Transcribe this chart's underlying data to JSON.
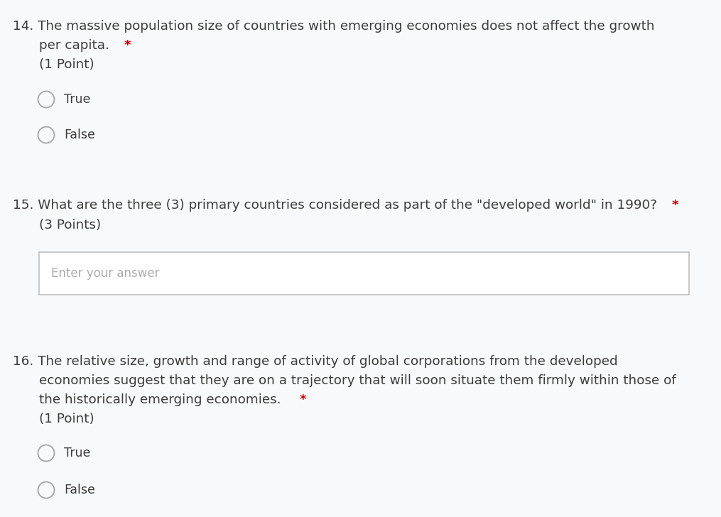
{
  "bg_color": "#f8f9fa",
  "text_color": "#3c3c3c",
  "points_color": "#3c3c3c",
  "red_color": "#cc0000",
  "border_color": "#c0c0c0",
  "radio_color": "#aaaaaa",
  "placeholder_color": "#aaaaaa",
  "q14_line1": "14. The massive population size of countries with emerging economies does not affect the growth",
  "q14_line2_main": "per capita. ",
  "q14_line2_star": "*",
  "q14_points": "(1 Point)",
  "q14_options": [
    "True",
    "False"
  ],
  "q15_line1_main": "15. What are the three (3) primary countries considered as part of the \"developed world\" in 1990? ",
  "q15_line1_star": "*",
  "q15_points": "(3 Points)",
  "q15_placeholder": "Enter your answer",
  "q16_line1": "16. The relative size, growth and range of activity of global corporations from the developed",
  "q16_line2": "economies suggest that they are on a trajectory that will soon situate them firmly within those of",
  "q16_line3_main": "the historically emerging economies. ",
  "q16_line3_star": "*",
  "q16_points": "(1 Point)",
  "q16_options": [
    "True",
    "False"
  ],
  "font_size_q": 13.2,
  "font_size_points": 13.2,
  "font_size_options": 12.5,
  "font_size_placeholder": 12.0,
  "fig_width": 10.15,
  "fig_height": 7.28,
  "dpi": 100
}
